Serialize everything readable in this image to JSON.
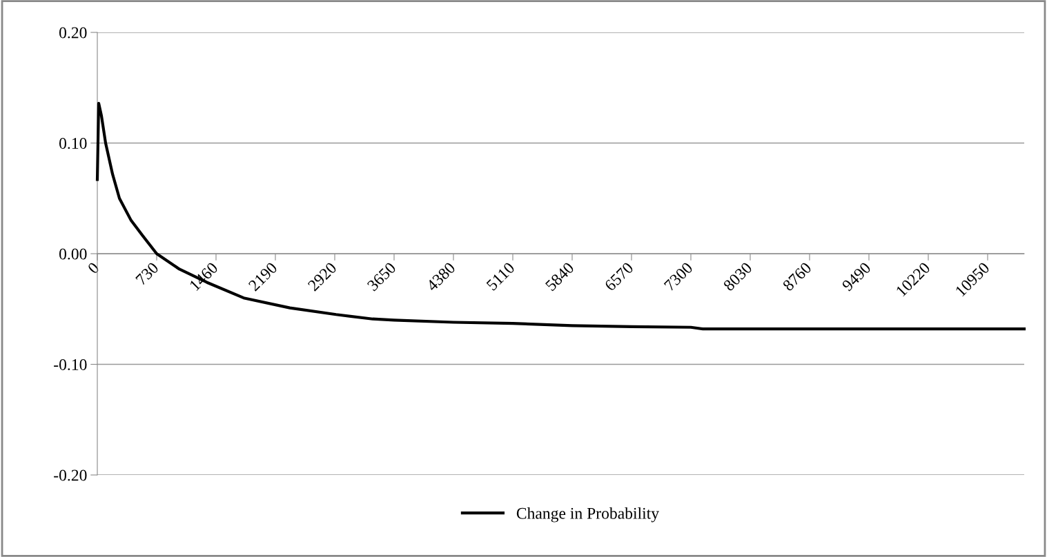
{
  "chart_data": {
    "type": "line",
    "x": [
      0,
      17,
      50,
      102,
      187,
      272,
      416,
      560,
      730,
      1010,
      1350,
      1800,
      2368,
      2937,
      3387,
      3650,
      4380,
      5110,
      5840,
      6570,
      7300,
      7450,
      8030,
      8760,
      9490,
      10220,
      10950,
      11400
    ],
    "series": [
      {
        "name": "Change in Probability",
        "color": "#000000",
        "values": [
          0.067,
          0.136,
          0.125,
          0.1,
          0.072,
          0.05,
          0.03,
          0.016,
          0.0,
          -0.014,
          -0.026,
          -0.04,
          -0.049,
          -0.055,
          -0.059,
          -0.06,
          -0.062,
          -0.063,
          -0.065,
          -0.066,
          -0.0665,
          -0.068,
          -0.068,
          -0.068,
          -0.068,
          -0.068,
          -0.068,
          -0.068
        ]
      }
    ],
    "xlim": [
      0,
      11400
    ],
    "xticks": [
      0,
      730,
      1460,
      2190,
      2920,
      3650,
      4380,
      5110,
      5840,
      6570,
      7300,
      8030,
      8760,
      9490,
      10220,
      10950
    ],
    "ylim": [
      -0.2,
      0.2
    ],
    "yticks": [
      {
        "value": -0.2,
        "label": "-0.20"
      },
      {
        "value": -0.1,
        "label": "-0.10"
      },
      {
        "value": 0,
        "label": "0.00"
      },
      {
        "value": 0.1,
        "label": "0.10"
      },
      {
        "value": 0.2,
        "label": "0.20"
      }
    ],
    "grid": "y",
    "legend": "bottom",
    "marker": "none",
    "line_style": "solid"
  }
}
